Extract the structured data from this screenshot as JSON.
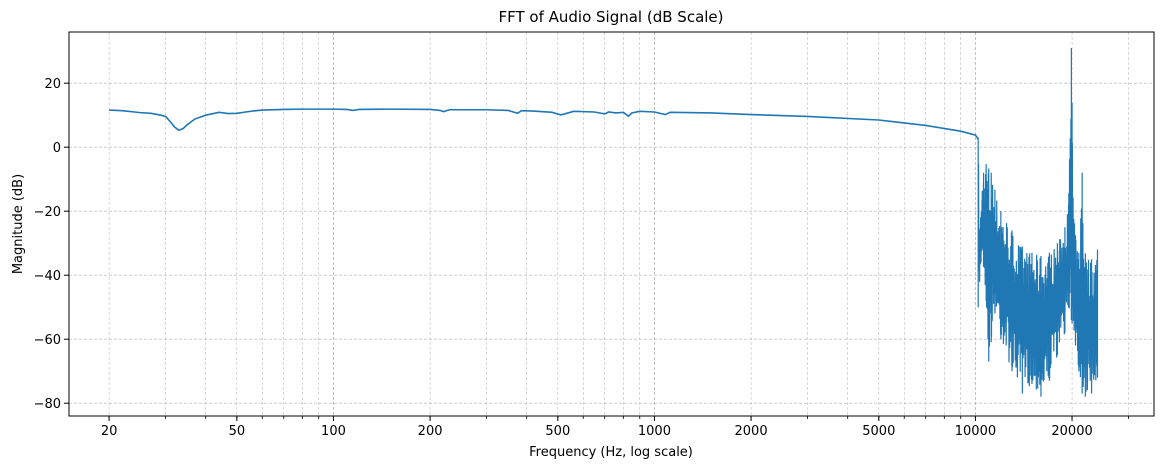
{
  "chart_data": {
    "type": "line",
    "title": "FFT of Audio Signal (dB Scale)",
    "xlabel": "Frequency (Hz, log scale)",
    "ylabel": "Magnitude (dB)",
    "x_scale": "log",
    "xlim": [
      15,
      36000
    ],
    "ylim": [
      -84,
      36
    ],
    "x_ticks": [
      20,
      50,
      100,
      200,
      500,
      1000,
      2000,
      5000,
      10000,
      20000
    ],
    "x_tick_labels": [
      "20",
      "50",
      "100",
      "200",
      "500",
      "1000",
      "2000",
      "5000",
      "10000",
      "20000"
    ],
    "y_ticks": [
      20,
      0,
      -20,
      -40,
      -60,
      -80
    ],
    "y_tick_labels": [
      "20",
      "0",
      "−20",
      "−40",
      "−60",
      "−80"
    ],
    "grid": true,
    "grid_style": "dashed, major and minor",
    "line_color": "#1f77b4",
    "series": [
      {
        "points": [
          [
            20,
            11.6
          ],
          [
            22,
            11.4
          ],
          [
            24,
            11.0
          ],
          [
            25,
            10.8
          ],
          [
            27,
            10.6
          ],
          [
            29,
            10.0
          ],
          [
            30,
            9.6
          ],
          [
            31,
            8.0
          ],
          [
            32,
            6.3
          ],
          [
            33,
            5.3
          ],
          [
            34,
            5.8
          ],
          [
            35,
            7.0
          ],
          [
            37,
            8.8
          ],
          [
            40,
            10.0
          ],
          [
            44,
            10.9
          ],
          [
            47,
            10.5
          ],
          [
            50,
            10.6
          ],
          [
            55,
            11.2
          ],
          [
            60,
            11.6
          ],
          [
            70,
            11.8
          ],
          [
            80,
            11.9
          ],
          [
            100,
            11.9
          ],
          [
            110,
            11.8
          ],
          [
            115,
            11.5
          ],
          [
            120,
            11.8
          ],
          [
            150,
            11.9
          ],
          [
            200,
            11.8
          ],
          [
            215,
            11.5
          ],
          [
            220,
            11.1
          ],
          [
            230,
            11.7
          ],
          [
            300,
            11.7
          ],
          [
            350,
            11.5
          ],
          [
            375,
            10.6
          ],
          [
            385,
            11.4
          ],
          [
            420,
            11.3
          ],
          [
            480,
            10.9
          ],
          [
            510,
            10.1
          ],
          [
            525,
            10.4
          ],
          [
            560,
            11.2
          ],
          [
            650,
            11.0
          ],
          [
            700,
            10.4
          ],
          [
            720,
            11.0
          ],
          [
            760,
            10.7
          ],
          [
            800,
            10.9
          ],
          [
            830,
            9.7
          ],
          [
            850,
            10.7
          ],
          [
            900,
            11.2
          ],
          [
            1000,
            11.0
          ],
          [
            1080,
            10.2
          ],
          [
            1120,
            10.9
          ],
          [
            1500,
            10.7
          ],
          [
            2000,
            10.2
          ],
          [
            3000,
            9.6
          ],
          [
            5000,
            8.5
          ],
          [
            7000,
            6.8
          ],
          [
            9000,
            5.0
          ],
          [
            10000,
            3.8
          ],
          [
            10200,
            2.5
          ]
        ],
        "noise_region": {
          "x_range": [
            10200,
            24000
          ],
          "upper_envelope": [
            [
              10200,
              3.0
            ],
            [
              10300,
              -25.0
            ],
            [
              10600,
              -8.0
            ],
            [
              10800,
              -5.3
            ],
            [
              11200,
              -8.0
            ],
            [
              11600,
              -15.0
            ],
            [
              12000,
              -20.0
            ],
            [
              12500,
              -22.0
            ],
            [
              13000,
              -26.0
            ],
            [
              14000,
              -31.0
            ],
            [
              15000,
              -33.0
            ],
            [
              16000,
              -34.0
            ],
            [
              17000,
              -33.0
            ],
            [
              18000,
              -30.0
            ],
            [
              19000,
              -25.0
            ],
            [
              19500,
              -18.0
            ],
            [
              19900,
              31.0
            ],
            [
              20200,
              -20.0
            ],
            [
              20600,
              -30.0
            ],
            [
              21000,
              -33.0
            ],
            [
              21500,
              -8.0
            ],
            [
              21900,
              -33.0
            ],
            [
              23000,
              -35.0
            ],
            [
              24000,
              -32.0
            ]
          ],
          "lower_envelope": [
            [
              10200,
              -50.0
            ],
            [
              10500,
              -32.0
            ],
            [
              10800,
              -48.0
            ],
            [
              11000,
              -67.0
            ],
            [
              11500,
              -52.0
            ],
            [
              12000,
              -60.0
            ],
            [
              13000,
              -70.0
            ],
            [
              14000,
              -77.0
            ],
            [
              15000,
              -74.0
            ],
            [
              16000,
              -78.0
            ],
            [
              17000,
              -73.0
            ],
            [
              18000,
              -65.0
            ],
            [
              19000,
              -58.0
            ],
            [
              19500,
              -50.0
            ],
            [
              20000,
              -55.0
            ],
            [
              20500,
              -62.0
            ],
            [
              21000,
              -70.0
            ],
            [
              21500,
              -77.0
            ],
            [
              22000,
              -78.0
            ],
            [
              23000,
              -77.0
            ],
            [
              24000,
              -72.0
            ]
          ]
        }
      }
    ]
  }
}
